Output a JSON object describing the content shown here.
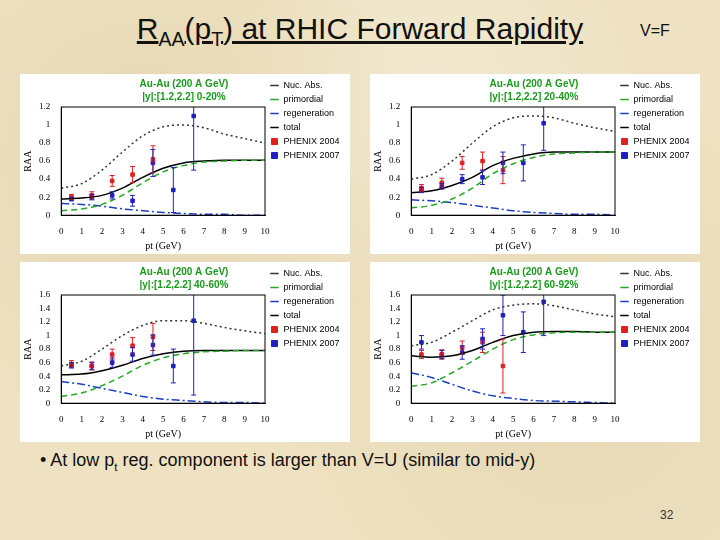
{
  "slide": {
    "title": [
      {
        "text": "R",
        "sub": false
      },
      {
        "text": "AA",
        "sub": true
      },
      {
        "text": "(p",
        "sub": false
      },
      {
        "text": "T",
        "sub": true
      },
      {
        "text": ") at RHIC Forward Rapidity",
        "sub": false
      }
    ],
    "label": "V=F",
    "bullet": [
      {
        "text": "• At low p",
        "sub": false
      },
      {
        "text": "t",
        "sub": true
      },
      {
        "text": " reg. component is larger than V=U (similar to mid-y)",
        "sub": false
      }
    ],
    "page": 32
  },
  "chart_data": [
    {
      "type": "line",
      "title": "Au-Au (200 A GeV)",
      "subtitle": "|y|:[1.2,2.2] 0-20%",
      "x_label": "pt (GeV)",
      "y_label": "RAA",
      "xlim": [
        0,
        10
      ],
      "xticks": [
        0,
        1,
        2,
        3,
        4,
        5,
        6,
        7,
        8,
        9,
        10
      ],
      "ylim": [
        0,
        1.2
      ],
      "yticks": [
        0,
        0.2,
        0.4,
        0.6,
        0.8,
        1,
        1.2
      ],
      "grid": false,
      "legend": "right",
      "series": [
        {
          "name": "Nuc. Abs.",
          "type": "line",
          "color": "#333333",
          "line_style": "dotted",
          "marker": "none",
          "x": [
            0,
            1,
            2,
            3,
            4,
            5,
            6,
            7,
            8,
            9,
            10
          ],
          "values": [
            0.3,
            0.35,
            0.5,
            0.7,
            0.88,
            0.98,
            1.0,
            0.97,
            0.9,
            0.85,
            0.8
          ]
        },
        {
          "name": "primordial",
          "type": "line",
          "color": "#22aa22",
          "line_style": "dashed",
          "marker": "none",
          "x": [
            0,
            1,
            2,
            3,
            4,
            5,
            6,
            7,
            8,
            9,
            10
          ],
          "values": [
            0.05,
            0.07,
            0.12,
            0.22,
            0.36,
            0.48,
            0.55,
            0.59,
            0.6,
            0.61,
            0.61
          ]
        },
        {
          "name": "regeneration",
          "type": "line",
          "color": "#1a3fbf",
          "line_style": "dashdot",
          "marker": "none",
          "x": [
            0,
            1,
            2,
            3,
            4,
            5,
            6,
            7,
            8,
            9,
            10
          ],
          "values": [
            0.13,
            0.12,
            0.1,
            0.07,
            0.05,
            0.03,
            0.02,
            0.01,
            0.01,
            0,
            0
          ]
        },
        {
          "name": "total",
          "type": "line",
          "color": "#000000",
          "line_style": "solid",
          "marker": "none",
          "x": [
            0,
            1,
            2,
            3,
            4,
            5,
            6,
            7,
            8,
            9,
            10
          ],
          "values": [
            0.18,
            0.19,
            0.22,
            0.3,
            0.42,
            0.52,
            0.58,
            0.6,
            0.61,
            0.61,
            0.61
          ]
        },
        {
          "name": "PHENIX 2004",
          "type": "scatter",
          "color": "#e02020",
          "line_style": "none",
          "marker": "square",
          "x": [
            0.5,
            1.5,
            2.5,
            3.5,
            4.5
          ],
          "values": [
            0.2,
            0.22,
            0.38,
            0.45,
            0.62
          ],
          "errors": [
            0.03,
            0.04,
            0.06,
            0.09,
            0.15
          ]
        },
        {
          "name": "PHENIX 2007",
          "type": "scatter",
          "color": "#2020c0",
          "line_style": "none",
          "marker": "square",
          "x": [
            0.5,
            1.5,
            2.5,
            3.5,
            4.5,
            5.5,
            6.5
          ],
          "values": [
            0.18,
            0.2,
            0.22,
            0.16,
            0.58,
            0.28,
            1.1
          ],
          "errors": [
            0.02,
            0.03,
            0.04,
            0.06,
            0.15,
            0.25,
            0.6
          ]
        }
      ]
    },
    {
      "type": "line",
      "title": "Au-Au (200 A GeV)",
      "subtitle": "|y|:[1.2,2.2] 20-40%",
      "x_label": "pt (GeV)",
      "y_label": "RAA",
      "xlim": [
        0,
        10
      ],
      "xticks": [
        0,
        1,
        2,
        3,
        4,
        5,
        6,
        7,
        8,
        9,
        10
      ],
      "ylim": [
        0,
        1.2
      ],
      "yticks": [
        0,
        0.2,
        0.4,
        0.6,
        0.8,
        1,
        1.2
      ],
      "grid": false,
      "legend": "right",
      "series": [
        {
          "name": "Nuc. Abs.",
          "type": "line",
          "color": "#333333",
          "line_style": "dotted",
          "marker": "none",
          "x": [
            0,
            1,
            2,
            3,
            4,
            5,
            6,
            7,
            8,
            9,
            10
          ],
          "values": [
            0.4,
            0.45,
            0.6,
            0.8,
            0.98,
            1.08,
            1.1,
            1.08,
            1.02,
            0.97,
            0.93
          ]
        },
        {
          "name": "primordial",
          "type": "line",
          "color": "#22aa22",
          "line_style": "dashed",
          "marker": "none",
          "x": [
            0,
            1,
            2,
            3,
            4,
            5,
            6,
            7,
            8,
            9,
            10
          ],
          "values": [
            0.08,
            0.11,
            0.18,
            0.3,
            0.46,
            0.57,
            0.64,
            0.68,
            0.69,
            0.7,
            0.7
          ]
        },
        {
          "name": "regeneration",
          "type": "line",
          "color": "#1a3fbf",
          "line_style": "dashdot",
          "marker": "none",
          "x": [
            0,
            1,
            2,
            3,
            4,
            5,
            6,
            7,
            8,
            9,
            10
          ],
          "values": [
            0.17,
            0.16,
            0.14,
            0.11,
            0.08,
            0.05,
            0.03,
            0.02,
            0.01,
            0.01,
            0
          ]
        },
        {
          "name": "total",
          "type": "line",
          "color": "#000000",
          "line_style": "solid",
          "marker": "none",
          "x": [
            0,
            1,
            2,
            3,
            4,
            5,
            6,
            7,
            8,
            9,
            10
          ],
          "values": [
            0.25,
            0.27,
            0.33,
            0.42,
            0.55,
            0.63,
            0.68,
            0.7,
            0.7,
            0.7,
            0.7
          ]
        },
        {
          "name": "PHENIX 2004",
          "type": "scatter",
          "color": "#e02020",
          "line_style": "none",
          "marker": "square",
          "x": [
            0.5,
            1.5,
            2.5,
            3.5,
            4.5
          ],
          "values": [
            0.3,
            0.36,
            0.58,
            0.6,
            0.5
          ],
          "errors": [
            0.04,
            0.05,
            0.07,
            0.1,
            0.15
          ]
        },
        {
          "name": "PHENIX 2007",
          "type": "scatter",
          "color": "#2020c0",
          "line_style": "none",
          "marker": "square",
          "x": [
            0.5,
            1.5,
            2.5,
            3.5,
            4.5,
            5.5,
            6.5
          ],
          "values": [
            0.28,
            0.32,
            0.4,
            0.42,
            0.58,
            0.58,
            1.02
          ],
          "errors": [
            0.03,
            0.03,
            0.05,
            0.08,
            0.12,
            0.2,
            0.3
          ]
        }
      ]
    },
    {
      "type": "line",
      "title": "Au-Au (200 A GeV)",
      "subtitle": "|y|:[1.2,2.2] 40-60%",
      "x_label": "pt (GeV)",
      "y_label": "RAA",
      "xlim": [
        0,
        10
      ],
      "xticks": [
        0,
        1,
        2,
        3,
        4,
        5,
        6,
        7,
        8,
        9,
        10
      ],
      "ylim": [
        0,
        1.6
      ],
      "yticks": [
        0,
        0.2,
        0.4,
        0.6,
        0.8,
        1,
        1.2,
        1.4,
        1.6
      ],
      "grid": false,
      "legend": "right",
      "series": [
        {
          "name": "Nuc. Abs.",
          "type": "line",
          "color": "#333333",
          "line_style": "dotted",
          "marker": "none",
          "x": [
            0,
            1,
            2,
            3,
            4,
            5,
            6,
            7,
            8,
            9,
            10
          ],
          "values": [
            0.55,
            0.62,
            0.8,
            1.0,
            1.15,
            1.22,
            1.22,
            1.18,
            1.12,
            1.07,
            1.03
          ]
        },
        {
          "name": "primordial",
          "type": "line",
          "color": "#22aa22",
          "line_style": "dashed",
          "marker": "none",
          "x": [
            0,
            1,
            2,
            3,
            4,
            5,
            6,
            7,
            8,
            9,
            10
          ],
          "values": [
            0.1,
            0.15,
            0.26,
            0.4,
            0.56,
            0.67,
            0.73,
            0.76,
            0.77,
            0.78,
            0.78
          ]
        },
        {
          "name": "regeneration",
          "type": "line",
          "color": "#1a3fbf",
          "line_style": "dashdot",
          "marker": "none",
          "x": [
            0,
            1,
            2,
            3,
            4,
            5,
            6,
            7,
            8,
            9,
            10
          ],
          "values": [
            0.32,
            0.28,
            0.22,
            0.16,
            0.1,
            0.06,
            0.04,
            0.02,
            0.01,
            0.01,
            0
          ]
        },
        {
          "name": "total",
          "type": "line",
          "color": "#000000",
          "line_style": "solid",
          "marker": "none",
          "x": [
            0,
            1,
            2,
            3,
            4,
            5,
            6,
            7,
            8,
            9,
            10
          ],
          "values": [
            0.42,
            0.43,
            0.48,
            0.56,
            0.66,
            0.73,
            0.77,
            0.78,
            0.78,
            0.78,
            0.78
          ]
        },
        {
          "name": "PHENIX 2004",
          "type": "scatter",
          "color": "#e02020",
          "line_style": "none",
          "marker": "square",
          "x": [
            0.5,
            1.5,
            2.5,
            3.5,
            4.5
          ],
          "values": [
            0.58,
            0.55,
            0.72,
            0.85,
            0.98
          ],
          "errors": [
            0.05,
            0.06,
            0.08,
            0.12,
            0.2
          ]
        },
        {
          "name": "PHENIX 2007",
          "type": "scatter",
          "color": "#2020c0",
          "line_style": "none",
          "marker": "square",
          "x": [
            0.5,
            1.5,
            2.5,
            3.5,
            4.5,
            5.5,
            6.5
          ],
          "values": [
            0.56,
            0.55,
            0.6,
            0.72,
            0.86,
            0.55,
            1.22
          ],
          "errors": [
            0.04,
            0.05,
            0.07,
            0.1,
            0.15,
            0.25,
            1.1
          ]
        }
      ]
    },
    {
      "type": "line",
      "title": "Au-Au (200 A GeV)",
      "subtitle": "|y|:[1.2,2.2] 60-92%",
      "x_label": "pt (GeV)",
      "y_label": "RAA",
      "xlim": [
        0,
        10
      ],
      "xticks": [
        0,
        1,
        2,
        3,
        4,
        5,
        6,
        7,
        8,
        9,
        10
      ],
      "ylim": [
        0,
        1.6
      ],
      "yticks": [
        0,
        0.2,
        0.4,
        0.6,
        0.8,
        1,
        1.2,
        1.4,
        1.6
      ],
      "grid": false,
      "legend": "right",
      "series": [
        {
          "name": "Nuc. Abs.",
          "type": "line",
          "color": "#333333",
          "line_style": "dotted",
          "marker": "none",
          "x": [
            0,
            1,
            2,
            3,
            4,
            5,
            6,
            7,
            8,
            9,
            10
          ],
          "values": [
            0.85,
            0.9,
            1.05,
            1.22,
            1.38,
            1.45,
            1.47,
            1.44,
            1.38,
            1.32,
            1.28
          ]
        },
        {
          "name": "primordial",
          "type": "line",
          "color": "#22aa22",
          "line_style": "dashed",
          "marker": "none",
          "x": [
            0,
            1,
            2,
            3,
            4,
            5,
            6,
            7,
            8,
            9,
            10
          ],
          "values": [
            0.25,
            0.3,
            0.45,
            0.62,
            0.8,
            0.94,
            1.01,
            1.04,
            1.05,
            1.05,
            1.05
          ]
        },
        {
          "name": "regeneration",
          "type": "line",
          "color": "#1a3fbf",
          "line_style": "dashdot",
          "marker": "none",
          "x": [
            0,
            1,
            2,
            3,
            4,
            5,
            6,
            7,
            8,
            9,
            10
          ],
          "values": [
            0.45,
            0.38,
            0.28,
            0.18,
            0.11,
            0.07,
            0.04,
            0.03,
            0.02,
            0.01,
            0
          ]
        },
        {
          "name": "total",
          "type": "line",
          "color": "#000000",
          "line_style": "solid",
          "marker": "none",
          "x": [
            0,
            1,
            2,
            3,
            4,
            5,
            6,
            7,
            8,
            9,
            10
          ],
          "values": [
            0.7,
            0.68,
            0.7,
            0.78,
            0.9,
            1.0,
            1.05,
            1.06,
            1.06,
            1.05,
            1.05
          ]
        },
        {
          "name": "PHENIX 2004",
          "type": "scatter",
          "color": "#e02020",
          "line_style": "none",
          "marker": "square",
          "x": [
            0.5,
            1.5,
            2.5,
            3.5,
            4.5
          ],
          "values": [
            0.72,
            0.72,
            0.82,
            0.9,
            0.55
          ],
          "errors": [
            0.06,
            0.07,
            0.1,
            0.15,
            0.4
          ]
        },
        {
          "name": "PHENIX 2007",
          "type": "scatter",
          "color": "#2020c0",
          "line_style": "none",
          "marker": "square",
          "x": [
            0.5,
            1.5,
            2.5,
            3.5,
            4.5,
            5.5,
            6.5
          ],
          "values": [
            0.9,
            0.72,
            0.75,
            0.95,
            1.3,
            1.05,
            1.5
          ],
          "errors": [
            0.1,
            0.06,
            0.1,
            0.15,
            0.3,
            0.3,
            0.5
          ]
        }
      ]
    }
  ]
}
